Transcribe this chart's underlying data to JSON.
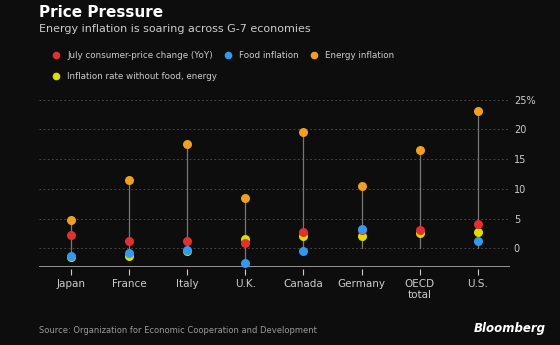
{
  "title": "Price Pressure",
  "subtitle": "Energy inflation is soaring across G-7 economies",
  "source": "Source: Organization for Economic Cooperation and Development",
  "bloomberg": "Bloomberg",
  "categories": [
    "Japan",
    "France",
    "Italy",
    "U.K.",
    "Canada",
    "Germany",
    "OECD\ntotal",
    "U.S."
  ],
  "legend": [
    {
      "label": "July consumer-price change (YoY)",
      "color": "#e03030"
    },
    {
      "label": "Food inflation",
      "color": "#3399ee"
    },
    {
      "label": "Energy inflation",
      "color": "#f0a020"
    },
    {
      "label": "Inflation rate without food, energy",
      "color": "#dddd00"
    }
  ],
  "data": {
    "cpi": [
      2.3,
      1.2,
      1.3,
      0.9,
      2.8,
      3.0,
      3.0,
      4.0
    ],
    "food": [
      -1.3,
      -0.8,
      -0.3,
      -2.5,
      -0.5,
      3.3,
      null,
      1.3
    ],
    "energy": [
      4.8,
      11.5,
      17.5,
      8.5,
      19.5,
      10.5,
      16.5,
      23.0
    ],
    "core": [
      -1.5,
      -1.3,
      -0.4,
      1.5,
      2.0,
      2.0,
      2.5,
      2.8
    ]
  },
  "ylim": [
    -3.5,
    25.5
  ],
  "yticks": [
    0,
    5,
    10,
    15,
    20,
    25
  ],
  "background_color": "#0d0d0d",
  "text_color": "#cccccc",
  "grid_color": "#555555",
  "line_color": "#777777"
}
